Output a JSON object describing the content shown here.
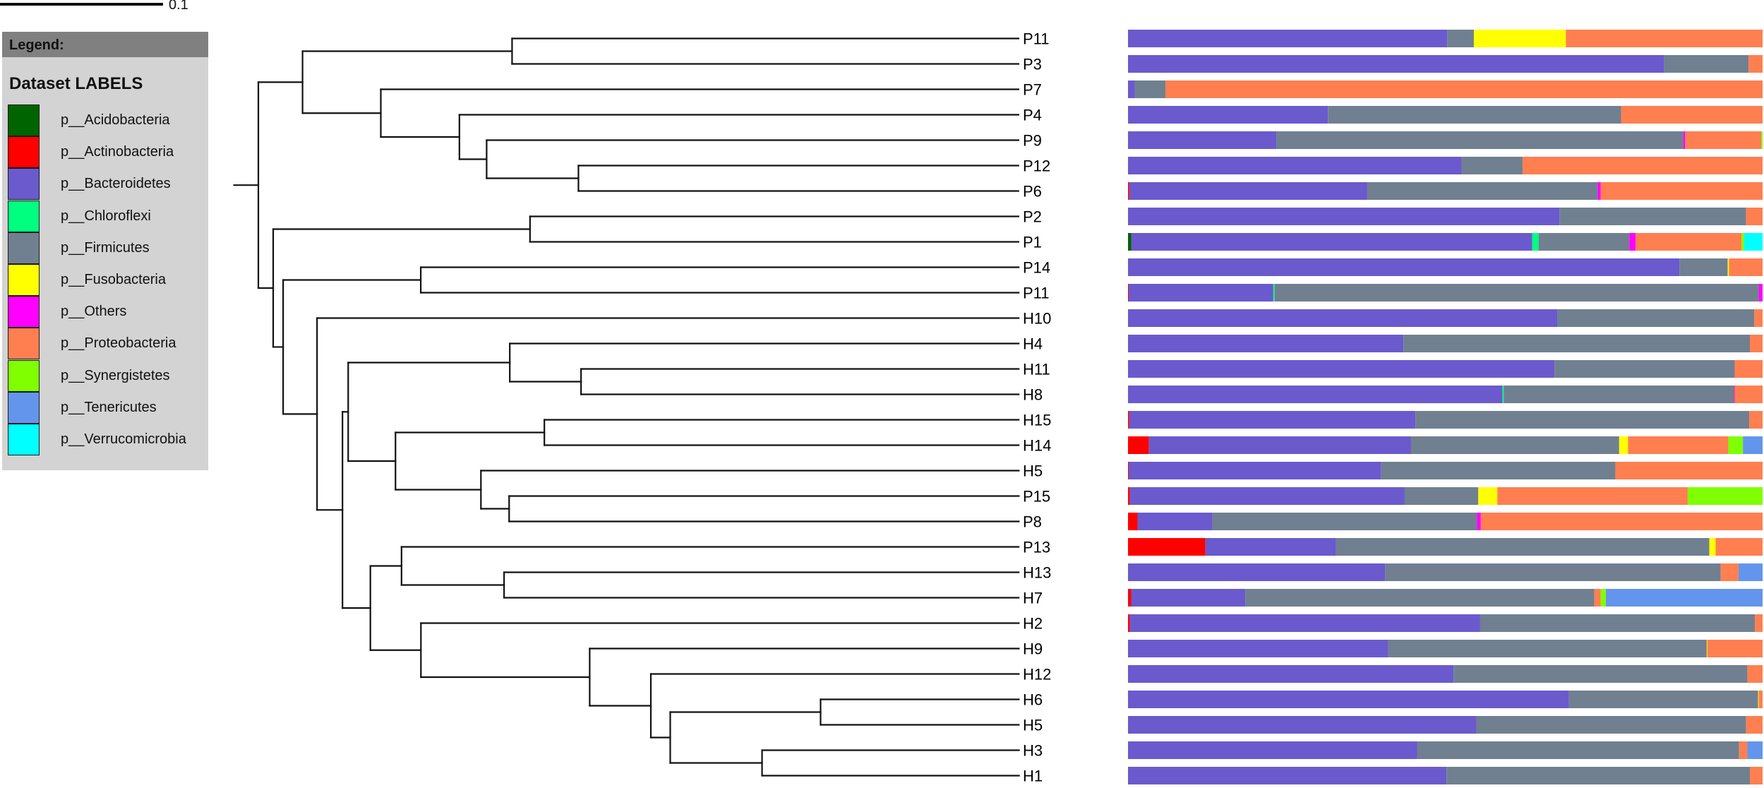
{
  "chart_data": {
    "type": "bar",
    "subtype": "phylogenetic-tree-with-stacked-bars",
    "title": "",
    "scale_bar": {
      "value": 0.1,
      "label": "0.1"
    },
    "legend": {
      "header": "Legend:",
      "title": "Dataset LABELS",
      "placement": "top-left",
      "items": [
        {
          "name": "p__Acidobacteria",
          "color": "#006400"
        },
        {
          "name": "p__Actinobacteria",
          "color": "#ff0000"
        },
        {
          "name": "p__Bacteroidetes",
          "color": "#6a5acd"
        },
        {
          "name": "p__Chloroflexi",
          "color": "#00ff7f"
        },
        {
          "name": "p__Firmicutes",
          "color": "#708090"
        },
        {
          "name": "p__Fusobacteria",
          "color": "#ffff00"
        },
        {
          "name": "p__Others",
          "color": "#ff00ff"
        },
        {
          "name": "p__Proteobacteria",
          "color": "#ff7f50"
        },
        {
          "name": "p__Synergistetes",
          "color": "#7fff00"
        },
        {
          "name": "p__Tenericutes",
          "color": "#6495ed"
        },
        {
          "name": "p__Verrucomicrobia",
          "color": "#00ffff"
        }
      ]
    },
    "tree": {
      "root_branch": 0.0149,
      "children": [
        {
          "bl": 0.0271,
          "children": [
            {
              "bl": 0.1285,
              "children": [
                {
                  "bl": 0.3106,
                  "leaf": 0
                },
                {
                  "bl": 0.3106,
                  "leaf": 1
                }
              ]
            },
            {
              "bl": 0.048,
              "children": [
                {
                  "bl": 0.3911,
                  "leaf": 2
                },
                {
                  "bl": 0.0482,
                  "children": [
                    {
                      "bl": 0.3429,
                      "leaf": 3
                    },
                    {
                      "bl": 0.0167,
                      "children": [
                        {
                          "bl": 0.3262,
                          "leaf": 4
                        },
                        {
                          "bl": 0.0563,
                          "children": [
                            {
                              "bl": 0.2698,
                              "leaf": 5
                            },
                            {
                              "bl": 0.2698,
                              "leaf": 6
                            }
                          ]
                        }
                      ]
                    }
                  ]
                }
              ]
            }
          ]
        },
        {
          "bl": 0.0091,
          "children": [
            {
              "bl": 0.1575,
              "children": [
                {
                  "bl": 0.2996,
                  "leaf": 7
                },
                {
                  "bl": 0.2996,
                  "leaf": 8
                }
              ]
            },
            {
              "bl": 0.0061,
              "children": [
                {
                  "bl": 0.0844,
                  "children": [
                    {
                      "bl": 0.3667,
                      "leaf": 9
                    },
                    {
                      "bl": 0.3667,
                      "leaf": 10
                    }
                  ]
                },
                {
                  "bl": 0.0208,
                  "children": [
                    {
                      "bl": 0.4303,
                      "leaf": 11
                    },
                    {
                      "bl": 0.0156,
                      "children": [
                        {
                          "bl": 0.0035,
                          "children": [
                            {
                              "bl": 0.0991,
                              "children": [
                                {
                                  "bl": 0.3121,
                                  "leaf": 12
                                },
                                {
                                  "bl": 0.0437,
                                  "children": [
                                    {
                                      "bl": 0.2684,
                                      "leaf": 13
                                    },
                                    {
                                      "bl": 0.2684,
                                      "leaf": 14
                                    }
                                  ]
                                }
                              ]
                            },
                            {
                              "bl": 0.029,
                              "children": [
                                {
                                  "bl": 0.0913,
                                  "children": [
                                    {
                                      "bl": 0.2909,
                                      "leaf": 15
                                    },
                                    {
                                      "bl": 0.2909,
                                      "leaf": 16
                                    }
                                  ]
                                },
                                {
                                  "bl": 0.0524,
                                  "children": [
                                    {
                                      "bl": 0.3299,
                                      "leaf": 17
                                    },
                                    {
                                      "bl": 0.0173,
                                      "children": [
                                        {
                                          "bl": 0.3126,
                                          "leaf": 18
                                        },
                                        {
                                          "bl": 0.3126,
                                          "leaf": 19
                                        }
                                      ]
                                    }
                                  ]
                                }
                              ]
                            }
                          ]
                        },
                        {
                          "bl": 0.0171,
                          "children": [
                            {
                              "bl": 0.0191,
                              "children": [
                                {
                                  "bl": 0.3785,
                                  "leaf": 20
                                },
                                {
                                  "bl": 0.0629,
                                  "children": [
                                    {
                                      "bl": 0.3156,
                                      "leaf": 21
                                    },
                                    {
                                      "bl": 0.3156,
                                      "leaf": 22
                                    }
                                  ]
                                }
                              ]
                            },
                            {
                              "bl": 0.031,
                              "children": [
                                {
                                  "bl": 0.3667,
                                  "leaf": 23
                                },
                                {
                                  "bl": 0.1035,
                                  "children": [
                                    {
                                      "bl": 0.2632,
                                      "leaf": 24
                                    },
                                    {
                                      "bl": 0.0375,
                                      "children": [
                                        {
                                          "bl": 0.2257,
                                          "leaf": 25
                                        },
                                        {
                                          "bl": 0.0119,
                                          "children": [
                                            {
                                              "bl": 0.0922,
                                              "children": [
                                                {
                                                  "bl": 0.1216,
                                                  "leaf": 26
                                                },
                                                {
                                                  "bl": 0.1216,
                                                  "leaf": 27
                                                }
                                              ]
                                            },
                                            {
                                              "bl": 0.0563,
                                              "children": [
                                                {
                                                  "bl": 0.1576,
                                                  "leaf": 28
                                                },
                                                {
                                                  "bl": 0.1576,
                                                  "leaf": 29
                                                }
                                              ]
                                            }
                                          ]
                                        }
                                      ]
                                    }
                                  ]
                                }
                              ]
                            }
                          ]
                        }
                      ]
                    }
                  ]
                }
              ]
            }
          ]
        }
      ]
    },
    "categories": [
      "P11",
      "P3",
      "P7",
      "P4",
      "P9",
      "P12",
      "P6",
      "P2",
      "P1",
      "P14",
      "P11",
      "H10",
      "H4",
      "H11",
      "H8",
      "H15",
      "H14",
      "H5",
      "P15",
      "P8",
      "P13",
      "H13",
      "H7",
      "H2",
      "H9",
      "H12",
      "H6",
      "H5",
      "H3",
      "H1"
    ],
    "xlim": [
      0,
      1
    ],
    "series_order": [
      "p__Acidobacteria",
      "p__Actinobacteria",
      "p__Bacteroidetes",
      "p__Chloroflexi",
      "p__Firmicutes",
      "p__Fusobacteria",
      "p__Others",
      "p__Proteobacteria",
      "p__Synergistetes",
      "p__Tenericutes",
      "p__Verrucomicrobia"
    ],
    "rows": [
      [
        0,
        0,
        0.503,
        0,
        0.042,
        0.145,
        0,
        0.31,
        0,
        0,
        0
      ],
      [
        0,
        0,
        0.845,
        0,
        0.133,
        0,
        0,
        0.022,
        0,
        0,
        0
      ],
      [
        0,
        0,
        0.011,
        0,
        0.048,
        0,
        0,
        0.941,
        0,
        0,
        0
      ],
      [
        0,
        0,
        0.315,
        0,
        0.462,
        0,
        0,
        0.223,
        0,
        0,
        0
      ],
      [
        0,
        0,
        0.234,
        0,
        0.641,
        0,
        0.003,
        0.12,
        0.002,
        0,
        0
      ],
      [
        0,
        0,
        0.526,
        0,
        0.096,
        0,
        0,
        0.378,
        0,
        0,
        0
      ],
      [
        0,
        0.002,
        0.375,
        0,
        0.363,
        0,
        0.005,
        0.255,
        0,
        0,
        0
      ],
      [
        0,
        0,
        0.68,
        0,
        0.294,
        0,
        0,
        0.026,
        0,
        0,
        0
      ],
      [
        0.005,
        0,
        0.632,
        0.01,
        0.143,
        0,
        0.01,
        0.167,
        0.004,
        0,
        0.029
      ],
      [
        0,
        0,
        0.869,
        0,
        0.076,
        0.002,
        0,
        0.053,
        0,
        0,
        0
      ],
      [
        0,
        0.001,
        0.228,
        0.002,
        0.763,
        0,
        0.006,
        0,
        0,
        0,
        0
      ],
      [
        0,
        0,
        0.677,
        0,
        0.31,
        0,
        0,
        0.013,
        0,
        0,
        0
      ],
      [
        0,
        0,
        0.434,
        0,
        0.546,
        0,
        0,
        0.02,
        0,
        0,
        0
      ],
      [
        0,
        0,
        0.672,
        0,
        0.284,
        0,
        0,
        0.044,
        0,
        0,
        0
      ],
      [
        0,
        0,
        0.59,
        0.002,
        0.363,
        0,
        0.001,
        0.044,
        0,
        0,
        0
      ],
      [
        0,
        0.002,
        0.451,
        0,
        0.526,
        0,
        0,
        0.021,
        0,
        0,
        0
      ],
      [
        0,
        0.033,
        0.413,
        0,
        0.328,
        0.014,
        0,
        0.158,
        0.023,
        0.031,
        0
      ],
      [
        0,
        0.001,
        0.398,
        0,
        0.369,
        0,
        0,
        0.232,
        0,
        0,
        0
      ],
      [
        0,
        0.003,
        0.433,
        0,
        0.116,
        0.03,
        0,
        0.3,
        0.118,
        0,
        0
      ],
      [
        0,
        0.015,
        0.118,
        0,
        0.417,
        0,
        0.006,
        0.444,
        0,
        0,
        0
      ],
      [
        0,
        0.122,
        0.206,
        0,
        0.588,
        0.01,
        0,
        0.074,
        0,
        0,
        0
      ],
      [
        0,
        0,
        0.405,
        0,
        0.529,
        0,
        0,
        0.028,
        0,
        0.038,
        0
      ],
      [
        0,
        0.005,
        0.18,
        0,
        0.55,
        0,
        0,
        0.01,
        0.008,
        0.247,
        0
      ],
      [
        0,
        0.003,
        0.552,
        0,
        0.433,
        0,
        0,
        0.012,
        0,
        0,
        0
      ],
      [
        0,
        0,
        0.41,
        0,
        0.502,
        0.001,
        0,
        0.087,
        0,
        0,
        0
      ],
      [
        0,
        0,
        0.513,
        0,
        0.463,
        0,
        0,
        0.024,
        0,
        0,
        0
      ],
      [
        0,
        0,
        0.695,
        0,
        0.298,
        0.001,
        0,
        0.006,
        0,
        0,
        0
      ],
      [
        0,
        0,
        0.549,
        0,
        0.425,
        0,
        0,
        0.026,
        0,
        0,
        0
      ],
      [
        0,
        0,
        0.456,
        0,
        0.507,
        0,
        0,
        0.013,
        0,
        0.024,
        0
      ],
      [
        0,
        0,
        0.502,
        0,
        0.478,
        0,
        0,
        0.02,
        0,
        0,
        0
      ]
    ]
  }
}
